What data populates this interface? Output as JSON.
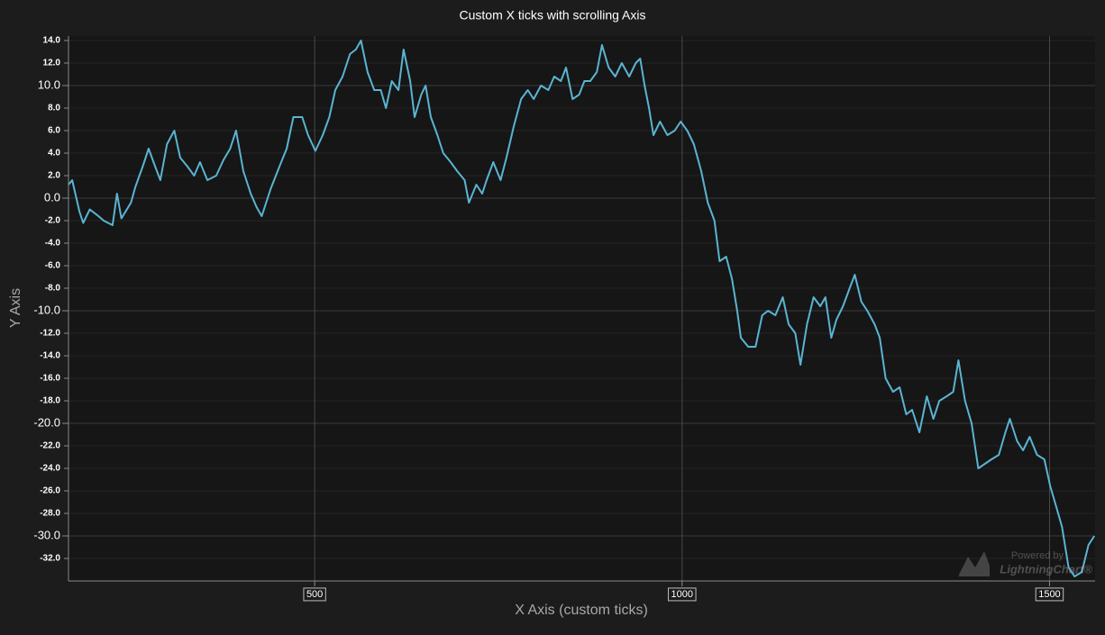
{
  "chart_data": {
    "type": "line",
    "title": "Custom X ticks with scrolling Axis",
    "x_label": "X Axis (custom ticks)",
    "y_label": "Y Axis",
    "color": "#5ab4d2",
    "grid": true,
    "xlim": [
      165,
      1562
    ],
    "ylim": [
      -34,
      14.4
    ],
    "xticks": [
      500,
      1000,
      1500
    ],
    "yticks": [
      {
        "value": 14,
        "label": "14.0"
      },
      {
        "value": 12,
        "label": "12.0"
      },
      {
        "value": 10,
        "label": "10.0"
      },
      {
        "value": 8,
        "label": "8.0"
      },
      {
        "value": 6,
        "label": "6.0"
      },
      {
        "value": 4,
        "label": "4.0"
      },
      {
        "value": 2,
        "label": "2.0"
      },
      {
        "value": 0,
        "label": "0.0"
      },
      {
        "value": -2,
        "label": "-2.0"
      },
      {
        "value": -4,
        "label": "-4.0"
      },
      {
        "value": -6,
        "label": "-6.0"
      },
      {
        "value": -8,
        "label": "-8.0"
      },
      {
        "value": -10,
        "label": "-10.0"
      },
      {
        "value": -12,
        "label": "-12.0"
      },
      {
        "value": -14,
        "label": "-14.0"
      },
      {
        "value": -16,
        "label": "-16.0"
      },
      {
        "value": -18,
        "label": "-18.0"
      },
      {
        "value": -20,
        "label": "-20.0"
      },
      {
        "value": -22,
        "label": "-22.0"
      },
      {
        "value": -24,
        "label": "-24.0"
      },
      {
        "value": -26,
        "label": "-26.0"
      },
      {
        "value": -28,
        "label": "-28.0"
      },
      {
        "value": -30,
        "label": "-30.0"
      },
      {
        "value": -32,
        "label": "-32.0"
      }
    ],
    "x": [
      165,
      170,
      180,
      185,
      194,
      204,
      213,
      225,
      231,
      237,
      250,
      256,
      266,
      274,
      283,
      290,
      299,
      309,
      317,
      327,
      336,
      344,
      354,
      366,
      376,
      385,
      393,
      403,
      413,
      421,
      428,
      440,
      452,
      462,
      471,
      483,
      491,
      501,
      511,
      520,
      528,
      538,
      548,
      556,
      563,
      572,
      581,
      590,
      597,
      605,
      614,
      621,
      630,
      636,
      645,
      651,
      658,
      667,
      675,
      685,
      694,
      704,
      710,
      720,
      728,
      734,
      743,
      753,
      761,
      771,
      781,
      790,
      798,
      808,
      818,
      826,
      835,
      842,
      851,
      860,
      867,
      875,
      884,
      891,
      900,
      909,
      918,
      928,
      937,
      943,
      949,
      955,
      961,
      970,
      980,
      990,
      998,
      1007,
      1016,
      1026,
      1035,
      1044,
      1051,
      1060,
      1068,
      1075,
      1080,
      1090,
      1100,
      1109,
      1117,
      1127,
      1137,
      1145,
      1154,
      1161,
      1170,
      1179,
      1188,
      1195,
      1203,
      1210,
      1219,
      1228,
      1235,
      1244,
      1252,
      1262,
      1269,
      1277,
      1287,
      1296,
      1305,
      1313,
      1323,
      1333,
      1342,
      1350,
      1360,
      1369,
      1376,
      1385,
      1394,
      1403,
      1412,
      1421,
      1431,
      1440,
      1446,
      1456,
      1464,
      1473,
      1483,
      1493,
      1501,
      1510,
      1517,
      1526,
      1534,
      1544,
      1553,
      1561
    ],
    "values": [
      1.2,
      1.6,
      -1.2,
      -2.2,
      -1,
      -1.5,
      -2,
      -2.4,
      0.4,
      -1.8,
      -0.4,
      1,
      2.8,
      4.4,
      2.8,
      1.6,
      4.8,
      6,
      3.6,
      2.8,
      2,
      3.2,
      1.6,
      2,
      3.4,
      4.4,
      6,
      2.4,
      0.4,
      -0.8,
      -1.6,
      0.8,
      2.8,
      4.4,
      7.2,
      7.2,
      5.6,
      4.2,
      5.6,
      7.2,
      9.6,
      10.8,
      12.8,
      13.2,
      14,
      11.2,
      9.6,
      9.6,
      8,
      10.4,
      9.6,
      13.2,
      10.4,
      7.2,
      9.2,
      10,
      7.2,
      5.6,
      4,
      3.2,
      2.4,
      1.6,
      -0.4,
      1.2,
      0.4,
      1.6,
      3.2,
      1.6,
      3.6,
      6.4,
      8.8,
      9.6,
      8.8,
      10,
      9.6,
      10.8,
      10.4,
      11.6,
      8.8,
      9.2,
      10.4,
      10.4,
      11.2,
      13.6,
      11.6,
      10.8,
      12,
      10.8,
      12,
      12.4,
      10,
      8,
      5.6,
      6.8,
      5.6,
      6,
      6.8,
      6,
      4.8,
      2.4,
      -0.4,
      -2,
      -5.6,
      -5.2,
      -7.2,
      -10,
      -12.4,
      -13.2,
      -13.2,
      -10.4,
      -10,
      -10.4,
      -8.8,
      -11.2,
      -12,
      -14.8,
      -11.2,
      -8.8,
      -9.6,
      -8.8,
      -12.4,
      -10.8,
      -9.6,
      -8,
      -6.8,
      -9.2,
      -10,
      -11.2,
      -12.4,
      -16,
      -17.2,
      -16.8,
      -19.2,
      -18.8,
      -20.8,
      -17.6,
      -19.6,
      -18,
      -17.6,
      -17.2,
      -14.4,
      -18,
      -20,
      -24,
      -23.6,
      -23.2,
      -22.8,
      -20.8,
      -19.6,
      -21.6,
      -22.4,
      -21.2,
      -22.8,
      -23.2,
      -25.6,
      -27.6,
      -29.2,
      -32.8,
      -33.6,
      -33.2,
      -30.8,
      -30
    ],
    "credits": {
      "line1": "Powered by",
      "line2": "LightningChart®"
    }
  }
}
